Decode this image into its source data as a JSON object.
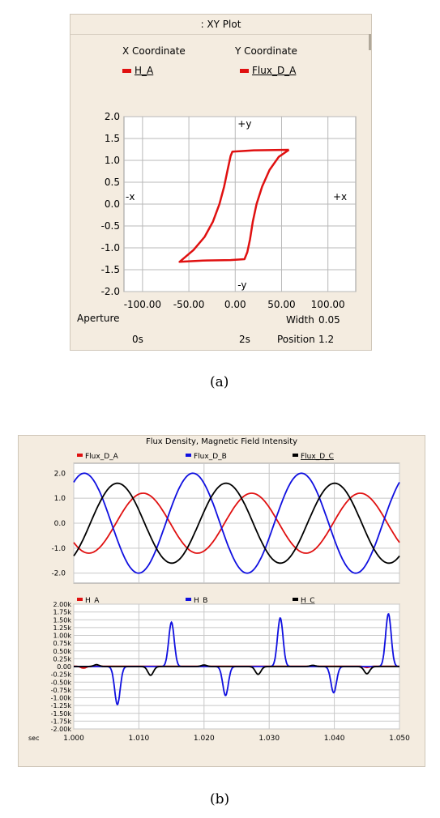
{
  "xy_panel": {
    "title": ": XY Plot",
    "x_header": "X Coordinate",
    "y_header": "Y Coordinate",
    "x_signal": "H_A",
    "y_signal": "Flux_D_A",
    "signal_color": "#e01010",
    "plus_y": "+y",
    "minus_y": "-y",
    "plus_x": "+x",
    "minus_x": "-x",
    "aperture_label": "Aperture",
    "width_label": "Width",
    "width_value": "0.05",
    "time_start": "0s",
    "time_end": "2s",
    "position_label": "Position",
    "position_value": "1.2"
  },
  "caption_a": "(a)",
  "caption_b": "(b)",
  "time_panel": {
    "title": "Flux Density, Magnetic Field Intensity",
    "x_unit": "sec"
  },
  "chart_data": [
    {
      "type": "line",
      "title": ": XY Plot",
      "xlabel": "",
      "ylabel": "",
      "xlim": [
        -120,
        130
      ],
      "ylim": [
        -2.0,
        2.0
      ],
      "x_ticks": [
        -100,
        -50,
        0,
        50,
        100
      ],
      "x_tick_labels": [
        "-100.00",
        "-50.00",
        "0.00",
        "50.00",
        "100.00"
      ],
      "y_ticks": [
        -2.0,
        -1.5,
        -1.0,
        -0.5,
        0.0,
        0.5,
        1.0,
        1.5,
        2.0
      ],
      "y_tick_labels": [
        "-2.0",
        "-1.5",
        "-1.0",
        "-0.5",
        "0.0",
        "0.5",
        "1.0",
        "1.5",
        "2.0"
      ],
      "grid": true,
      "series": [
        {
          "name": "Flux_D_A",
          "color": "#e01010",
          "points": [
            [
              58,
              1.24
            ],
            [
              20,
              1.23
            ],
            [
              -3,
              1.2
            ],
            [
              -5,
              1.1
            ],
            [
              -8,
              0.8
            ],
            [
              -12,
              0.4
            ],
            [
              -17,
              0.0
            ],
            [
              -24,
              -0.4
            ],
            [
              -33,
              -0.75
            ],
            [
              -45,
              -1.05
            ],
            [
              -60,
              -1.32
            ],
            [
              -35,
              -1.29
            ],
            [
              -5,
              -1.28
            ],
            [
              10,
              -1.26
            ],
            [
              13,
              -1.1
            ],
            [
              16,
              -0.8
            ],
            [
              19,
              -0.4
            ],
            [
              23,
              0.0
            ],
            [
              29,
              0.4
            ],
            [
              37,
              0.78
            ],
            [
              47,
              1.08
            ],
            [
              58,
              1.24
            ]
          ]
        }
      ]
    },
    {
      "type": "line",
      "title": "Flux Density, Magnetic Field Intensity",
      "xlabel": "sec",
      "ylabel": "",
      "xlim": [
        1.0,
        1.05
      ],
      "ylim": [
        -2.4,
        2.4
      ],
      "y_ticks": [
        -2.0,
        -1.0,
        0.0,
        1.0,
        2.0
      ],
      "y_tick_labels": [
        "-2.0",
        "-1.0",
        "0.0",
        "1.0",
        "2.0"
      ],
      "grid": true,
      "legend": "top",
      "series": [
        {
          "name": "Flux_D_A",
          "color": "#e01010",
          "amplitude": 1.2,
          "frequency_hz": 60,
          "phase_deg": -140
        },
        {
          "name": "Flux_D_B",
          "color": "#1010e0",
          "amplitude": 2.0,
          "frequency_hz": 60,
          "phase_deg": 55
        },
        {
          "name": "Flux_D_C",
          "color": "#000000",
          "amplitude": 1.6,
          "frequency_hz": 60,
          "phase_deg": -55
        }
      ]
    },
    {
      "type": "line",
      "title": "",
      "xlabel": "sec",
      "ylabel": "",
      "xlim": [
        1.0,
        1.05
      ],
      "ylim": [
        -2000,
        2000
      ],
      "x_ticks": [
        1.0,
        1.01,
        1.02,
        1.03,
        1.04,
        1.05
      ],
      "x_tick_labels": [
        "1.000",
        "1.010",
        "1.020",
        "1.030",
        "1.040",
        "1.050"
      ],
      "y_ticks": [
        -2000,
        -1750,
        -1500,
        -1250,
        -1000,
        -750,
        -500,
        -250,
        0,
        250,
        500,
        750,
        1000,
        1250,
        1500,
        1750,
        2000
      ],
      "y_tick_labels": [
        "-2.00k",
        "-1.75k",
        "-1.50k",
        "-1.25k",
        "-1.00k",
        "-0.75k",
        "-0.50k",
        "-0.25k",
        "0.00",
        "0.25k",
        "0.50k",
        "0.75k",
        "1.00k",
        "1.25k",
        "1.50k",
        "1.75k",
        "2.00k"
      ],
      "grid": true,
      "legend": "top",
      "series": [
        {
          "name": "H_A",
          "color": "#e01010",
          "pulses": [
            {
              "t": 1.0015,
              "v": -60
            },
            {
              "t": 1.045,
              "v": -40
            }
          ],
          "baseline": 10
        },
        {
          "name": "H_B",
          "color": "#1010e0",
          "pulses": [
            {
              "t": 1.0067,
              "v": -1220
            },
            {
              "t": 1.015,
              "v": 1420
            },
            {
              "t": 1.0233,
              "v": -930
            },
            {
              "t": 1.0317,
              "v": 1560
            },
            {
              "t": 1.0399,
              "v": -840
            },
            {
              "t": 1.0483,
              "v": 1690
            }
          ],
          "baseline": 0
        },
        {
          "name": "H_C",
          "color": "#000000",
          "pulses": [
            {
              "t": 1.0035,
              "v": 60
            },
            {
              "t": 1.0118,
              "v": -280
            },
            {
              "t": 1.02,
              "v": 50
            },
            {
              "t": 1.0283,
              "v": -250
            },
            {
              "t": 1.0367,
              "v": 40
            },
            {
              "t": 1.045,
              "v": -230
            }
          ],
          "baseline": 0
        }
      ]
    }
  ]
}
